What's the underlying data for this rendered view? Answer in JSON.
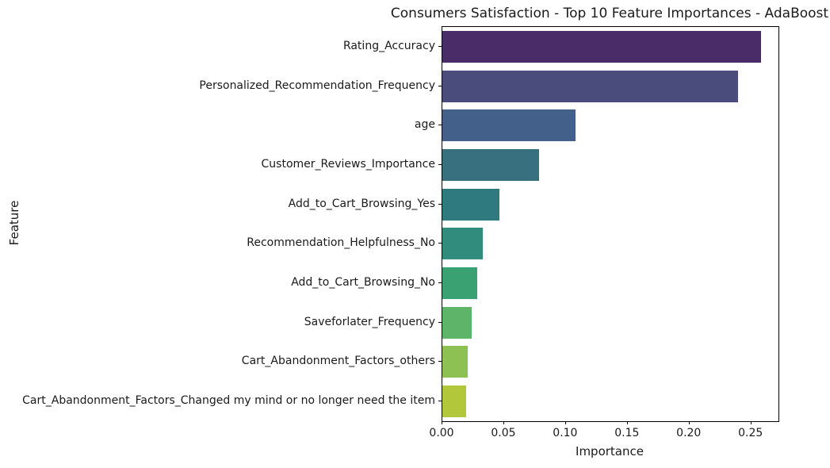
{
  "chart_data": {
    "type": "bar",
    "orientation": "horizontal",
    "title": "Consumers Satisfaction - Top 10 Feature Importances - AdaBoost",
    "xlabel": "Importance",
    "ylabel": "Feature",
    "categories": [
      "Rating_Accuracy",
      "Personalized_Recommendation_Frequency",
      "age",
      "Customer_Reviews_Importance",
      "Add_to_Cart_Browsing_Yes",
      "Recommendation_Helpfulness_No",
      "Add_to_Cart_Browsing_No",
      "Saveforlater_Frequency",
      "Cart_Abandonment_Factors_others",
      "Cart_Abandonment_Factors_Changed my mind or no longer need the item"
    ],
    "values": [
      0.258,
      0.239,
      0.108,
      0.078,
      0.046,
      0.033,
      0.028,
      0.024,
      0.0205,
      0.019
    ],
    "bar_colors": [
      "#4a2d68",
      "#4a4d7c",
      "#43608a",
      "#38707f",
      "#2f7a7e",
      "#328c7d",
      "#3aa172",
      "#5eb469",
      "#8dc153",
      "#b2c83a"
    ],
    "xlim": [
      0,
      0.272
    ],
    "xticks": [
      0,
      0.05,
      0.1,
      0.15,
      0.2,
      0.25
    ],
    "xtick_labels": [
      "0.00",
      "0.05",
      "0.10",
      "0.15",
      "0.20",
      "0.25"
    ],
    "grid": "off",
    "legend": "none"
  }
}
